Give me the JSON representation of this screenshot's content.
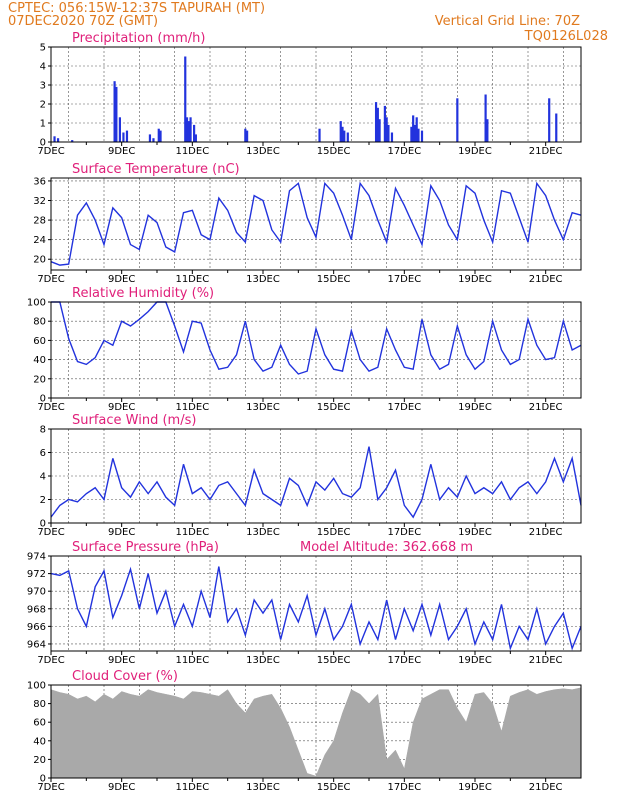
{
  "header": {
    "line1": "CPTEC:  056:15W-12:37S  TAPURAH (MT)",
    "line2": "07DEC2020 70Z (GMT)",
    "right1": "Vertical Grid Line: 70Z",
    "right2": "TQ0126L028"
  },
  "colors": {
    "header": "#e07a1f",
    "titles": "#e0207a",
    "series": "#2233dd",
    "cloud": "#a9a9a9",
    "grid": "#555555"
  },
  "x_ticks": [
    "7DEC",
    "9DEC",
    "11DEC",
    "13DEC",
    "15DEC",
    "17DEC",
    "19DEC",
    "21DEC"
  ],
  "chart_data": [
    {
      "type": "bar",
      "title": "Precipitation (mm/h)",
      "ylim": [
        0,
        5
      ],
      "yticks": [
        0,
        1,
        2,
        3,
        4,
        5
      ],
      "grid": true,
      "bars": [
        [
          0.1,
          0.3
        ],
        [
          0.2,
          0.2
        ],
        [
          0.6,
          0.1
        ],
        [
          1.8,
          3.2
        ],
        [
          1.85,
          2.9
        ],
        [
          1.95,
          1.3
        ],
        [
          2.05,
          0.5
        ],
        [
          2.15,
          0.6
        ],
        [
          2.8,
          0.4
        ],
        [
          2.9,
          0.2
        ],
        [
          3.05,
          0.7
        ],
        [
          3.1,
          0.6
        ],
        [
          3.8,
          4.5
        ],
        [
          3.85,
          1.3
        ],
        [
          3.9,
          1.1
        ],
        [
          3.95,
          1.3
        ],
        [
          4.05,
          0.9
        ],
        [
          4.1,
          0.4
        ],
        [
          5.5,
          0.7
        ],
        [
          5.55,
          0.6
        ],
        [
          7.6,
          0.7
        ],
        [
          8.2,
          1.1
        ],
        [
          8.25,
          0.8
        ],
        [
          8.3,
          0.6
        ],
        [
          8.4,
          0.5
        ],
        [
          9.2,
          2.1
        ],
        [
          9.25,
          1.8
        ],
        [
          9.3,
          1.2
        ],
        [
          9.45,
          1.9
        ],
        [
          9.5,
          1.3
        ],
        [
          9.55,
          0.9
        ],
        [
          9.65,
          0.5
        ],
        [
          10.2,
          0.8
        ],
        [
          10.25,
          1.4
        ],
        [
          10.3,
          0.9
        ],
        [
          10.35,
          1.3
        ],
        [
          10.4,
          0.7
        ],
        [
          10.5,
          0.6
        ],
        [
          11.5,
          2.3
        ],
        [
          12.3,
          2.5
        ],
        [
          12.35,
          1.2
        ],
        [
          14.1,
          2.3
        ],
        [
          14.3,
          1.5
        ]
      ],
      "series": []
    },
    {
      "type": "line",
      "title": "Surface Temperature (nC)",
      "ylim": [
        17.8,
        36.6
      ],
      "yticks": [
        20,
        24,
        28,
        32,
        36
      ],
      "grid": true,
      "x": [
        0,
        0.25,
        0.5,
        0.75,
        1,
        1.25,
        1.5,
        1.75,
        2,
        2.25,
        2.5,
        2.75,
        3,
        3.25,
        3.5,
        3.75,
        4,
        4.25,
        4.5,
        4.75,
        5,
        5.25,
        5.5,
        5.75,
        6,
        6.25,
        6.5,
        6.75,
        7,
        7.25,
        7.5,
        7.75,
        8,
        8.25,
        8.5,
        8.75,
        9,
        9.25,
        9.5,
        9.75,
        10,
        10.25,
        10.5,
        10.75,
        11,
        11.25,
        11.5,
        11.75,
        12,
        12.25,
        12.5,
        12.75,
        13,
        13.25,
        13.5,
        13.75,
        14,
        14.25,
        14.5,
        14.75,
        15
      ],
      "series": [
        {
          "name": "",
          "values": [
            19.5,
            18.8,
            19.0,
            29.0,
            31.5,
            28.0,
            23.0,
            30.5,
            28.5,
            23.0,
            22.0,
            29.0,
            27.5,
            22.5,
            21.5,
            29.5,
            30.0,
            25.0,
            24.0,
            32.5,
            30.0,
            25.5,
            23.5,
            33.0,
            32.0,
            26.0,
            23.5,
            34.0,
            35.5,
            28.5,
            24.5,
            35.5,
            33.5,
            29.0,
            24.0,
            35.5,
            33.0,
            28.0,
            23.5,
            34.5,
            31.0,
            27.0,
            23.0,
            35.0,
            32.0,
            27.0,
            24.0,
            35.0,
            33.5,
            28.0,
            23.5,
            34.0,
            33.5,
            28.5,
            23.5,
            35.5,
            33.0,
            28.0,
            24.0,
            29.5,
            29.0
          ]
        }
      ]
    },
    {
      "type": "line",
      "title": "Relative Humidity (%)",
      "ylim": [
        0,
        100
      ],
      "yticks": [
        0,
        20,
        40,
        60,
        80,
        100
      ],
      "grid": true,
      "x": [
        0,
        0.25,
        0.5,
        0.75,
        1,
        1.25,
        1.5,
        1.75,
        2,
        2.25,
        2.5,
        2.75,
        3,
        3.25,
        3.5,
        3.75,
        4,
        4.25,
        4.5,
        4.75,
        5,
        5.25,
        5.5,
        5.75,
        6,
        6.25,
        6.5,
        6.75,
        7,
        7.25,
        7.5,
        7.75,
        8,
        8.25,
        8.5,
        8.75,
        9,
        9.25,
        9.5,
        9.75,
        10,
        10.25,
        10.5,
        10.75,
        11,
        11.25,
        11.5,
        11.75,
        12,
        12.25,
        12.5,
        12.75,
        13,
        13.25,
        13.5,
        13.75,
        14,
        14.25,
        14.5,
        14.75,
        15
      ],
      "series": [
        {
          "name": "",
          "values": [
            100,
            100,
            62,
            38,
            35,
            42,
            60,
            55,
            80,
            75,
            82,
            90,
            100,
            100,
            75,
            48,
            80,
            78,
            50,
            30,
            32,
            45,
            80,
            40,
            28,
            32,
            55,
            35,
            25,
            28,
            72,
            45,
            30,
            28,
            70,
            40,
            28,
            32,
            72,
            50,
            32,
            30,
            82,
            45,
            30,
            35,
            75,
            45,
            30,
            38,
            80,
            50,
            35,
            40,
            82,
            55,
            40,
            42,
            80,
            50,
            55
          ]
        }
      ]
    },
    {
      "type": "line",
      "title": "Surface Wind (m/s)",
      "ylim": [
        0,
        8
      ],
      "yticks": [
        0,
        2,
        4,
        6,
        8
      ],
      "grid": true,
      "x": [
        0,
        0.25,
        0.5,
        0.75,
        1,
        1.25,
        1.5,
        1.75,
        2,
        2.25,
        2.5,
        2.75,
        3,
        3.25,
        3.5,
        3.75,
        4,
        4.25,
        4.5,
        4.75,
        5,
        5.25,
        5.5,
        5.75,
        6,
        6.25,
        6.5,
        6.75,
        7,
        7.25,
        7.5,
        7.75,
        8,
        8.25,
        8.5,
        8.75,
        9,
        9.25,
        9.5,
        9.75,
        10,
        10.25,
        10.5,
        10.75,
        11,
        11.25,
        11.5,
        11.75,
        12,
        12.25,
        12.5,
        12.75,
        13,
        13.25,
        13.5,
        13.75,
        14,
        14.25,
        14.5,
        14.75,
        15
      ],
      "series": [
        {
          "name": "",
          "values": [
            0.5,
            1.5,
            2.0,
            1.8,
            2.5,
            3.0,
            2.0,
            5.5,
            3.0,
            2.2,
            3.5,
            2.5,
            3.5,
            2.2,
            1.5,
            5.0,
            2.5,
            3.0,
            2.0,
            3.2,
            3.5,
            2.5,
            1.5,
            4.5,
            2.5,
            2.0,
            1.5,
            3.8,
            3.2,
            1.5,
            3.5,
            2.8,
            3.8,
            2.5,
            2.2,
            3.0,
            6.5,
            2.0,
            3.0,
            4.5,
            1.5,
            0.5,
            2.0,
            5.0,
            2.0,
            3.0,
            2.2,
            4.0,
            2.5,
            3.0,
            2.5,
            3.5,
            2.0,
            3.0,
            3.5,
            2.5,
            3.5,
            5.5,
            3.5,
            5.5,
            1.5
          ]
        }
      ]
    },
    {
      "type": "line",
      "title": "Surface Pressure (hPa)",
      "annotation": "Model Altitude: 362.668  m",
      "ylim": [
        963.2,
        974
      ],
      "yticks": [
        964,
        966,
        968,
        970,
        972,
        974
      ],
      "grid": true,
      "x": [
        0,
        0.25,
        0.5,
        0.75,
        1,
        1.25,
        1.5,
        1.75,
        2,
        2.25,
        2.5,
        2.75,
        3,
        3.25,
        3.5,
        3.75,
        4,
        4.25,
        4.5,
        4.75,
        5,
        5.25,
        5.5,
        5.75,
        6,
        6.25,
        6.5,
        6.75,
        7,
        7.25,
        7.5,
        7.75,
        8,
        8.25,
        8.5,
        8.75,
        9,
        9.25,
        9.5,
        9.75,
        10,
        10.25,
        10.5,
        10.75,
        11,
        11.25,
        11.5,
        11.75,
        12,
        12.25,
        12.5,
        12.75,
        13,
        13.25,
        13.5,
        13.75,
        14,
        14.25,
        14.5,
        14.75,
        15
      ],
      "series": [
        {
          "name": "",
          "values": [
            972,
            971.8,
            972.3,
            968.0,
            966.0,
            970.5,
            972.3,
            967.0,
            969.5,
            972.5,
            968.0,
            972.0,
            967.5,
            970.0,
            966.0,
            968.5,
            966.0,
            970.0,
            967.0,
            972.8,
            966.5,
            968.0,
            965.0,
            969.0,
            967.5,
            969.0,
            964.5,
            968.5,
            966.5,
            969.5,
            965.0,
            968.0,
            964.5,
            966.0,
            968.5,
            964.0,
            966.5,
            964.5,
            969.0,
            964.5,
            968.0,
            965.5,
            968.5,
            965.0,
            968.5,
            964.5,
            966.0,
            968.0,
            964.0,
            966.5,
            964.5,
            968.5,
            963.5,
            966.0,
            964.5,
            968.0,
            964.0,
            966.0,
            967.5,
            963.5,
            966.0
          ]
        }
      ]
    },
    {
      "type": "area",
      "title": "Cloud Cover (%)",
      "ylim": [
        0,
        100
      ],
      "yticks": [
        0,
        20,
        40,
        60,
        80,
        100
      ],
      "grid": true,
      "x": [
        0,
        0.25,
        0.5,
        0.75,
        1,
        1.25,
        1.5,
        1.75,
        2,
        2.25,
        2.5,
        2.75,
        3,
        3.25,
        3.5,
        3.75,
        4,
        4.25,
        4.5,
        4.75,
        5,
        5.25,
        5.5,
        5.75,
        6,
        6.25,
        6.5,
        6.75,
        7,
        7.25,
        7.5,
        7.75,
        8,
        8.25,
        8.5,
        8.75,
        9,
        9.25,
        9.5,
        9.75,
        10,
        10.25,
        10.5,
        10.75,
        11,
        11.25,
        11.5,
        11.75,
        12,
        12.25,
        12.5,
        12.75,
        13,
        13.25,
        13.5,
        13.75,
        14,
        14.25,
        14.5,
        14.75,
        15
      ],
      "series": [
        {
          "name": "",
          "values": [
            95,
            92,
            90,
            85,
            88,
            82,
            90,
            85,
            93,
            90,
            88,
            95,
            92,
            90,
            88,
            85,
            93,
            92,
            90,
            88,
            95,
            80,
            70,
            85,
            88,
            90,
            75,
            55,
            30,
            5,
            2,
            25,
            40,
            70,
            95,
            90,
            80,
            90,
            20,
            30,
            10,
            60,
            85,
            90,
            95,
            95,
            75,
            60,
            90,
            92,
            80,
            50,
            88,
            92,
            95,
            90,
            93,
            95,
            96,
            95,
            97
          ]
        }
      ]
    }
  ]
}
